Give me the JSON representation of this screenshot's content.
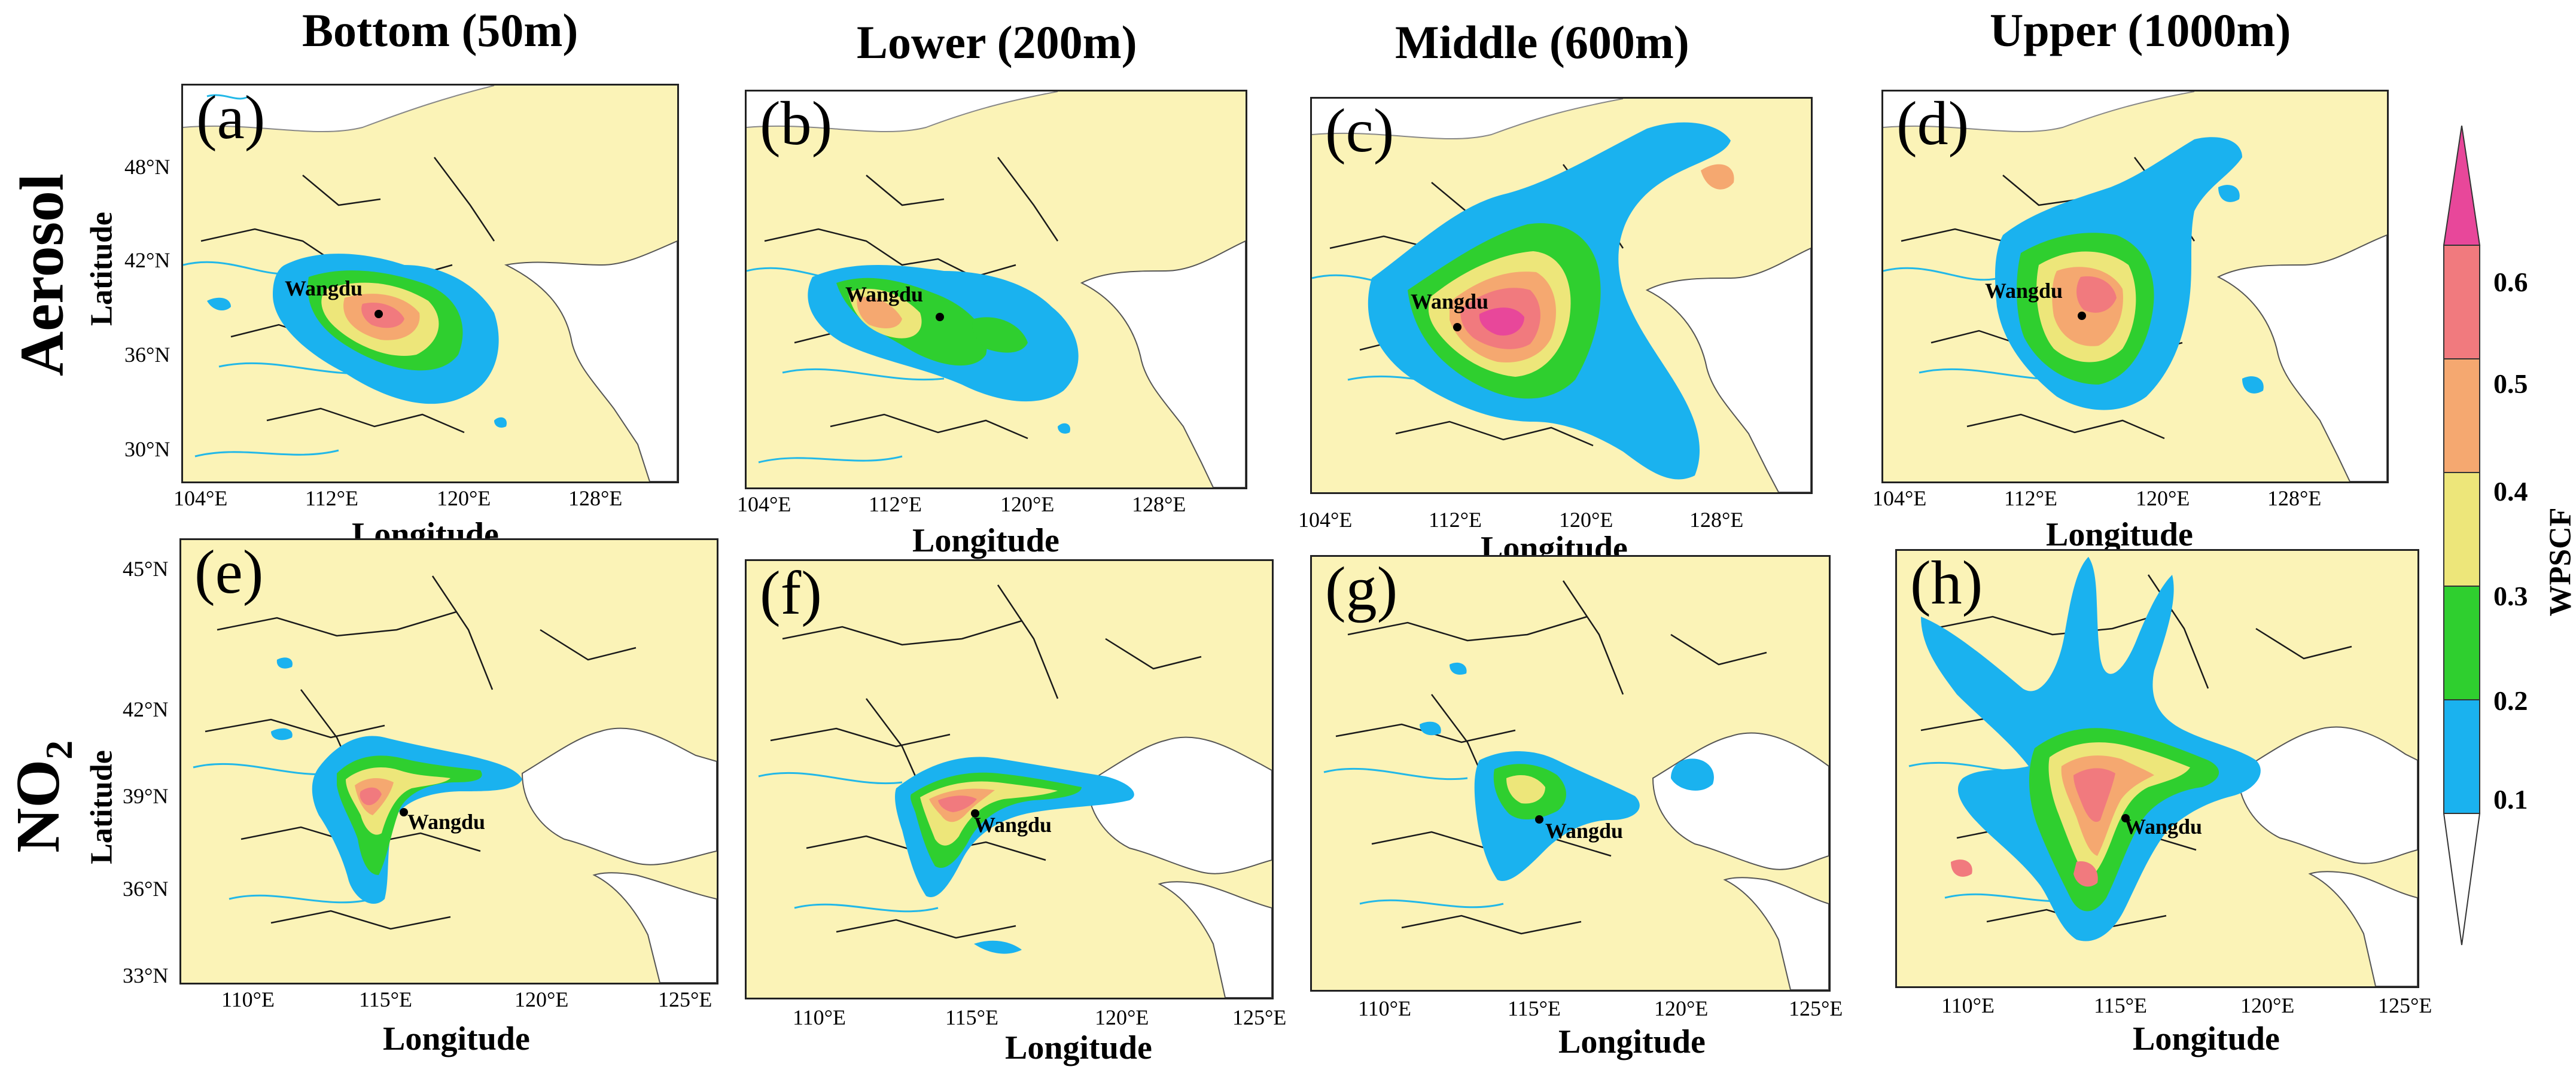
{
  "columns": [
    "Bottom (50m)",
    "Lower (200m)",
    "Middle (600m)",
    "Upper (1000m)"
  ],
  "rows": {
    "aerosol": {
      "title": "Aerosol"
    },
    "no2": {
      "title_main": "NO",
      "title_sub": "2"
    }
  },
  "panels": [
    {
      "label": "(a)",
      "station": "Wangdu"
    },
    {
      "label": "(b)",
      "station": "Wangdu"
    },
    {
      "label": "(c)",
      "station": "Wangdu"
    },
    {
      "label": "(d)",
      "station": "Wangdu"
    },
    {
      "label": "(e)",
      "station": "Wangdu"
    },
    {
      "label": "(f)",
      "station": "Wangdu"
    },
    {
      "label": "(g)",
      "station": "Wangdu"
    },
    {
      "label": "(h)",
      "station": "Wangdu"
    }
  ],
  "axes": {
    "xlabel": "Longitude",
    "ylabel": "Latitude",
    "top_lon_ticks": [
      "104°E",
      "112°E",
      "120°E",
      "128°E"
    ],
    "top_lat_ticks": [
      "48°N",
      "42°N",
      "36°N",
      "30°N"
    ],
    "bottom_lon_ticks": [
      "110°E",
      "115°E",
      "120°E",
      "125°E"
    ],
    "bottom_lat_ticks": [
      "45°N",
      "42°N",
      "39°N",
      "36°N",
      "33°N"
    ]
  },
  "colorbar": {
    "title": "WPSCF",
    "ticks": [
      "0.6",
      "0.5",
      "0.4",
      "0.3",
      "0.2",
      "0.1"
    ],
    "colors": [
      "#e8479a",
      "#f17a7e",
      "#f5a870",
      "#ede67a",
      "#2fcf2f",
      "#1ab2ef",
      "#ffffff"
    ]
  },
  "map_colors": {
    "land": "#fbf3b7",
    "sea": "#ffffff",
    "river": "#22b8e8",
    "border": "#1a1a1a"
  }
}
